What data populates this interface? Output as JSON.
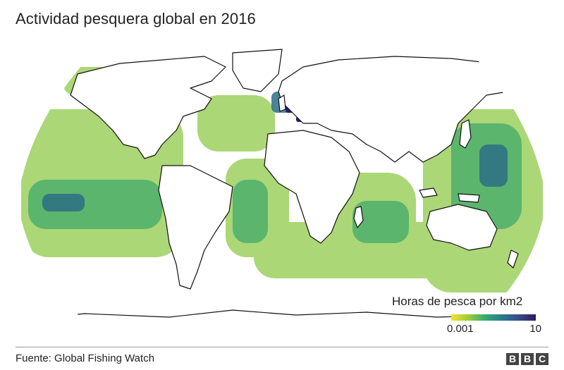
{
  "title": "Actividad pesquera global en 2016",
  "legend": {
    "title": "Horas de pesca por km2",
    "min_label": "0.001",
    "max_label": "10",
    "color_scale": [
      "#f3e22c",
      "#9ccd3c",
      "#35a974",
      "#2a7a8c",
      "#3a4a8a",
      "#2c1c5c"
    ]
  },
  "source": "Fuente: Global Fishing Watch",
  "logo": [
    "B",
    "B",
    "C"
  ],
  "map": {
    "projection": "Robinson-like world map",
    "land_color": "#ffffff",
    "coastline_color": "#111111",
    "fishing_colors": {
      "low": "#9ccd3c",
      "mid": "#35a974",
      "high": "#2c1c5c"
    }
  }
}
